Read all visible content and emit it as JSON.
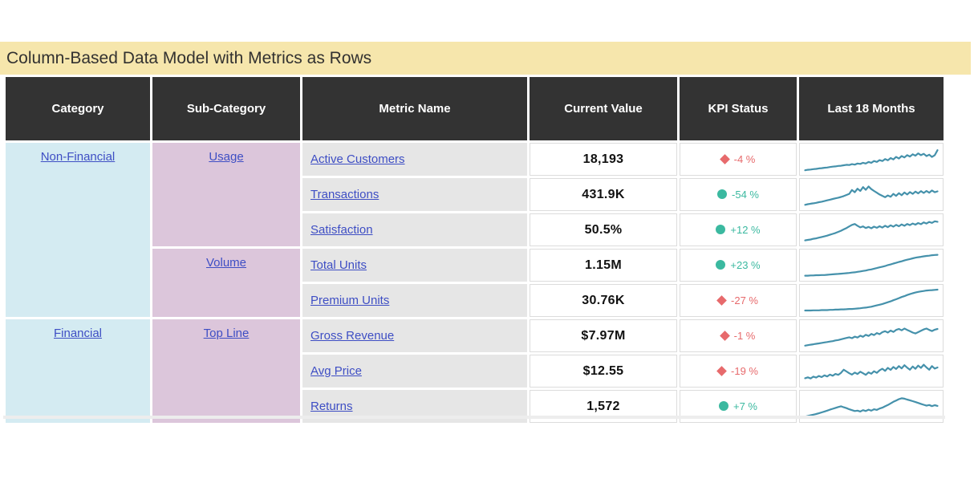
{
  "colors": {
    "title_bg": "#F6E6AC",
    "header_bg": "#333333",
    "header_text": "#FFFFFF",
    "category_bg": "#D4EBF2",
    "subcategory_bg": "#DCC6DB",
    "metric_bg": "#E6E6E6",
    "link": "#3E4EC4",
    "kpi_bad": "#E76A6C",
    "kpi_good": "#3BB9A0",
    "sparkline": "#4591AB"
  },
  "chart_data": {
    "type": "table",
    "title": "Column-Based Data Model with Metrics as Rows",
    "columns": [
      "Category",
      "Sub-Category",
      "Metric Name",
      "Current Value",
      "KPI Status",
      "Last 18 Months"
    ],
    "sparkline_column": "Last 18 Months",
    "sparkline_range": [
      0,
      100
    ],
    "rows": [
      {
        "category": "Non-Financial",
        "sub_category": "Usage",
        "metric": "Active Customers",
        "current_value": "18,193",
        "kpi_label": "-4 %",
        "kpi_state": "bad",
        "kpi_icon": "diamond",
        "sparkline": [
          3,
          5,
          6,
          8,
          9,
          11,
          12,
          14,
          15,
          17,
          19,
          20,
          22,
          23,
          25,
          27,
          26,
          30,
          28,
          33,
          31,
          36,
          33,
          40,
          36,
          44,
          40,
          48,
          44,
          53,
          47,
          57,
          51,
          62,
          55,
          66,
          60,
          70,
          64,
          74,
          68,
          78,
          70,
          76,
          66,
          72,
          62,
          70,
          92
        ]
      },
      {
        "category": "Non-Financial",
        "sub_category": "Usage",
        "metric": "Transactions",
        "current_value": "431.9K",
        "kpi_label": "-54 %",
        "kpi_state": "good",
        "kpi_icon": "circle",
        "sparkline": [
          6,
          9,
          11,
          13,
          15,
          18,
          20,
          23,
          26,
          29,
          32,
          35,
          38,
          41,
          45,
          50,
          55,
          72,
          62,
          78,
          68,
          85,
          73,
          88,
          76,
          68,
          60,
          52,
          46,
          40,
          48,
          42,
          55,
          46,
          58,
          49,
          61,
          52,
          63,
          55,
          65,
          57,
          67,
          59,
          68,
          60,
          70,
          62,
          66
        ]
      },
      {
        "category": "Non-Financial",
        "sub_category": "Usage",
        "metric": "Satisfaction",
        "current_value": "50.5%",
        "kpi_label": "+12 %",
        "kpi_state": "good",
        "kpi_icon": "circle",
        "sparkline": [
          5,
          7,
          9,
          12,
          14,
          17,
          20,
          23,
          26,
          30,
          34,
          38,
          43,
          48,
          54,
          60,
          67,
          74,
          78,
          70,
          63,
          67,
          60,
          65,
          59,
          66,
          61,
          68,
          62,
          70,
          64,
          72,
          66,
          74,
          68,
          76,
          70,
          78,
          73,
          80,
          75,
          82,
          77,
          85,
          80,
          87,
          83,
          90,
          88
        ]
      },
      {
        "category": "Non-Financial",
        "sub_category": "Volume",
        "metric": "Total Units",
        "current_value": "1.15M",
        "kpi_label": "+23 %",
        "kpi_state": "good",
        "kpi_icon": "circle",
        "sparkline": [
          5,
          5,
          6,
          6,
          7,
          7,
          8,
          8,
          9,
          10,
          11,
          12,
          13,
          14,
          15,
          16,
          17,
          19,
          20,
          22,
          24,
          26,
          28,
          31,
          33,
          36,
          39,
          42,
          45,
          48,
          52,
          55,
          59,
          62,
          66,
          69,
          73,
          76,
          79,
          82,
          85,
          87,
          89,
          91,
          93,
          94,
          96,
          97,
          98
        ]
      },
      {
        "category": "Non-Financial",
        "sub_category": "Volume",
        "metric": "Premium Units",
        "current_value": "30.76K",
        "kpi_label": "-27 %",
        "kpi_state": "bad",
        "kpi_icon": "diamond",
        "sparkline": [
          7,
          7,
          7,
          8,
          8,
          8,
          9,
          9,
          9,
          10,
          10,
          11,
          11,
          12,
          12,
          13,
          14,
          14,
          15,
          16,
          17,
          19,
          20,
          22,
          24,
          27,
          30,
          33,
          36,
          40,
          44,
          48,
          53,
          57,
          62,
          67,
          71,
          76,
          80,
          84,
          87,
          90,
          92,
          94,
          96,
          97,
          98,
          99,
          100
        ]
      },
      {
        "category": "Financial",
        "sub_category": "Top Line",
        "metric": "Gross Revenue",
        "current_value": "$7.97M",
        "kpi_label": "-1 %",
        "kpi_state": "bad",
        "kpi_icon": "diamond",
        "sparkline": [
          8,
          10,
          12,
          14,
          16,
          18,
          20,
          22,
          24,
          26,
          28,
          31,
          33,
          36,
          39,
          42,
          45,
          41,
          48,
          44,
          52,
          47,
          56,
          51,
          60,
          55,
          64,
          59,
          68,
          72,
          66,
          75,
          69,
          78,
          82,
          76,
          84,
          78,
          72,
          66,
          62,
          68,
          74,
          80,
          84,
          78,
          73,
          79,
          82
        ]
      },
      {
        "category": "Financial",
        "sub_category": "Top Line",
        "metric": "Avg Price",
        "current_value": "$12.55",
        "kpi_label": "-19 %",
        "kpi_state": "bad",
        "kpi_icon": "diamond",
        "sparkline": [
          20,
          24,
          19,
          27,
          23,
          30,
          25,
          33,
          28,
          36,
          31,
          39,
          35,
          44,
          58,
          50,
          42,
          36,
          45,
          39,
          49,
          42,
          35,
          46,
          40,
          51,
          44,
          55,
          62,
          53,
          66,
          57,
          70,
          61,
          74,
          64,
          78,
          67,
          58,
          72,
          62,
          76,
          66,
          80,
          68,
          58,
          74,
          63,
          68
        ]
      },
      {
        "category": "Financial",
        "sub_category": "Top Line",
        "metric": "Returns",
        "current_value": "1,572",
        "kpi_label": "+7 %",
        "kpi_state": "good",
        "kpi_icon": "circle",
        "sparkline": [
          6,
          9,
          12,
          15,
          18,
          21,
          25,
          29,
          33,
          37,
          41,
          45,
          49,
          52,
          48,
          44,
          39,
          35,
          31,
          33,
          29,
          35,
          31,
          37,
          33,
          39,
          36,
          42,
          46,
          52,
          58,
          65,
          72,
          78,
          84,
          88,
          86,
          82,
          79,
          75,
          71,
          67,
          63,
          59,
          55,
          58,
          53,
          57,
          54
        ]
      }
    ]
  }
}
